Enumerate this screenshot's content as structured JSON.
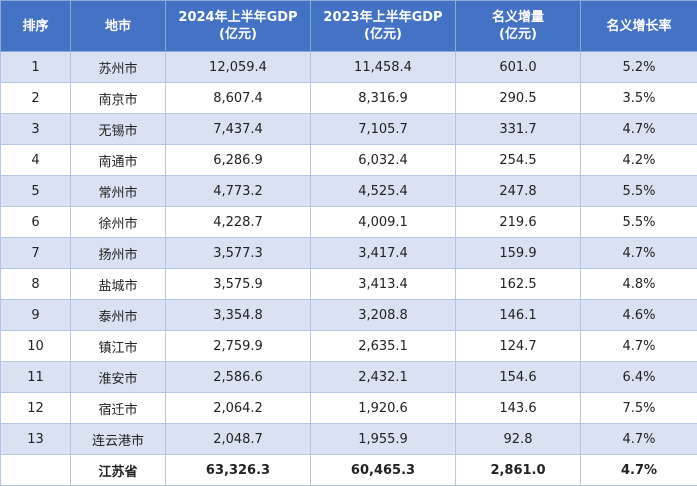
{
  "table": {
    "header": [
      [
        "排序"
      ],
      [
        "地市"
      ],
      [
        "2024年上半年GDP",
        "(亿元)"
      ],
      [
        "2023年上半年GDP",
        "(亿元)"
      ],
      [
        "名义增量",
        "(亿元)"
      ],
      [
        "名义增长率"
      ]
    ],
    "rows": [
      [
        "1",
        "苏州市",
        "12,059.4",
        "11,458.4",
        "601.0",
        "5.2%"
      ],
      [
        "2",
        "南京市",
        "8,607.4",
        "8,316.9",
        "290.5",
        "3.5%"
      ],
      [
        "3",
        "无锡市",
        "7,437.4",
        "7,105.7",
        "331.7",
        "4.7%"
      ],
      [
        "4",
        "南通市",
        "6,286.9",
        "6,032.4",
        "254.5",
        "4.2%"
      ],
      [
        "5",
        "常州市",
        "4,773.2",
        "4,525.4",
        "247.8",
        "5.5%"
      ],
      [
        "6",
        "徐州市",
        "4,228.7",
        "4,009.1",
        "219.6",
        "5.5%"
      ],
      [
        "7",
        "扬州市",
        "3,577.3",
        "3,417.4",
        "159.9",
        "4.7%"
      ],
      [
        "8",
        "盐城市",
        "3,575.9",
        "3,413.4",
        "162.5",
        "4.8%"
      ],
      [
        "9",
        "泰州市",
        "3,354.8",
        "3,208.8",
        "146.1",
        "4.6%"
      ],
      [
        "10",
        "镇江市",
        "2,759.9",
        "2,635.1",
        "124.7",
        "4.7%"
      ],
      [
        "11",
        "淮安市",
        "2,586.6",
        "2,432.1",
        "154.6",
        "6.4%"
      ],
      [
        "12",
        "宿迁市",
        "2,064.2",
        "1,920.6",
        "143.6",
        "7.5%"
      ],
      [
        "13",
        "连云港市",
        "2,048.7",
        "1,955.9",
        "92.8",
        "4.7%"
      ]
    ],
    "total": [
      "江苏省",
      "63,326.3",
      "60,465.3",
      "2,861.0",
      "4.7%"
    ]
  }
}
